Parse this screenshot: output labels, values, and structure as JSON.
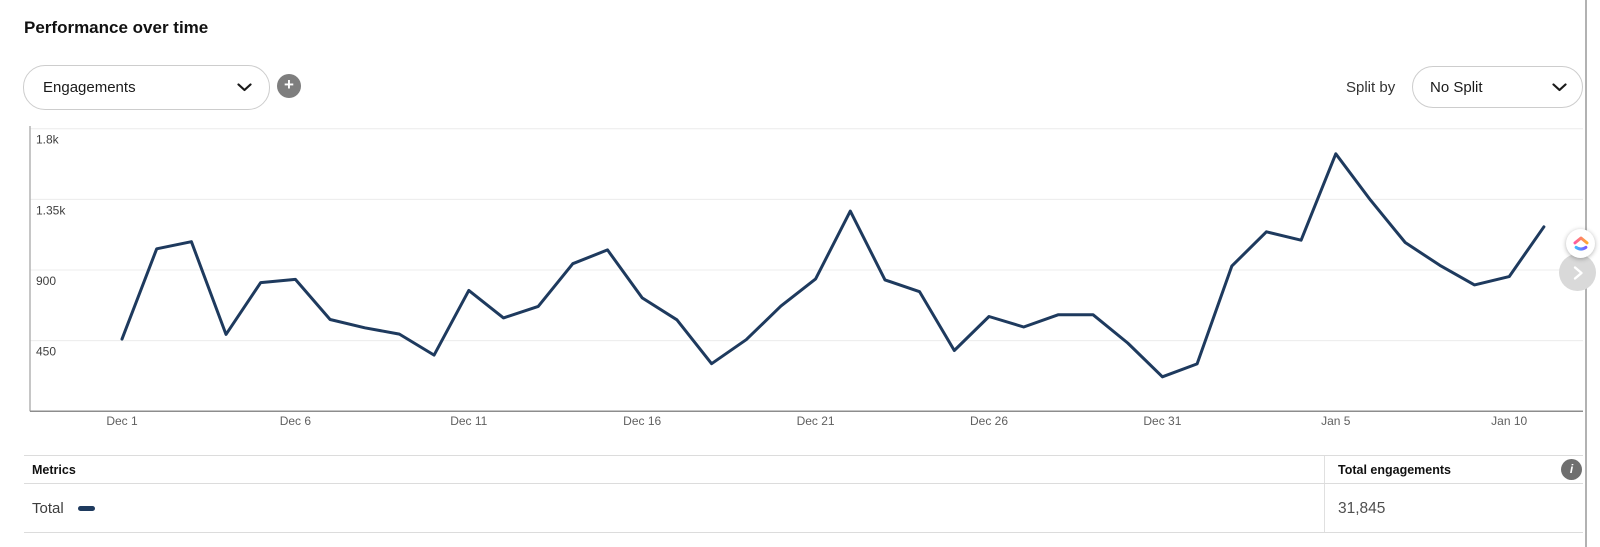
{
  "header": {
    "title": "Performance over time"
  },
  "controls": {
    "metric_dropdown": {
      "value": "Engagements"
    },
    "split_by_label": "Split by",
    "split_dropdown": {
      "value": "No Split"
    }
  },
  "icons": {
    "plus": "+",
    "info": "i"
  },
  "chart_data": {
    "type": "line",
    "title": "Performance over time",
    "x": [
      "Dec 1",
      "Dec 2",
      "Dec 3",
      "Dec 4",
      "Dec 5",
      "Dec 6",
      "Dec 7",
      "Dec 8",
      "Dec 9",
      "Dec 10",
      "Dec 11",
      "Dec 12",
      "Dec 13",
      "Dec 14",
      "Dec 15",
      "Dec 16",
      "Dec 17",
      "Dec 18",
      "Dec 19",
      "Dec 20",
      "Dec 21",
      "Dec 22",
      "Dec 23",
      "Dec 24",
      "Dec 25",
      "Dec 26",
      "Dec 27",
      "Dec 28",
      "Dec 29",
      "Dec 30",
      "Dec 31",
      "Jan 1",
      "Jan 2",
      "Jan 3",
      "Jan 4",
      "Jan 5",
      "Jan 6",
      "Jan 7",
      "Jan 8",
      "Jan 9",
      "Jan 10",
      "Jan 11"
    ],
    "series": [
      {
        "name": "Total",
        "color": "#1e3a5e",
        "values": [
          460,
          1035,
          1080,
          490,
          820,
          840,
          585,
          532,
          492,
          358,
          770,
          595,
          668,
          940,
          1028,
          722,
          583,
          303,
          456,
          670,
          843,
          1275,
          837,
          762,
          387,
          604,
          537,
          615,
          615,
          435,
          220,
          302,
          925,
          1143,
          1090,
          1640,
          1345,
          1075,
          930,
          805,
          858,
          1175
        ]
      }
    ],
    "x_tick_labels": [
      "Dec 1",
      "Dec 6",
      "Dec 11",
      "Dec 16",
      "Dec 21",
      "Dec 26",
      "Dec 31",
      "Jan 5",
      "Jan 10"
    ],
    "y_ticks": [
      450,
      900,
      1350,
      1800
    ],
    "y_tick_labels": [
      "450",
      "900",
      "1.35k",
      "1.8k"
    ],
    "ylim": [
      0,
      1890
    ],
    "grid": "horizontal",
    "legend_position": "none",
    "total": 31845
  },
  "table": {
    "metrics_header": "Metrics",
    "value_header": "Total engagements",
    "rows": [
      {
        "label": "Total",
        "value": "31,845"
      }
    ]
  },
  "overlay": {
    "next_arrow": "›"
  }
}
